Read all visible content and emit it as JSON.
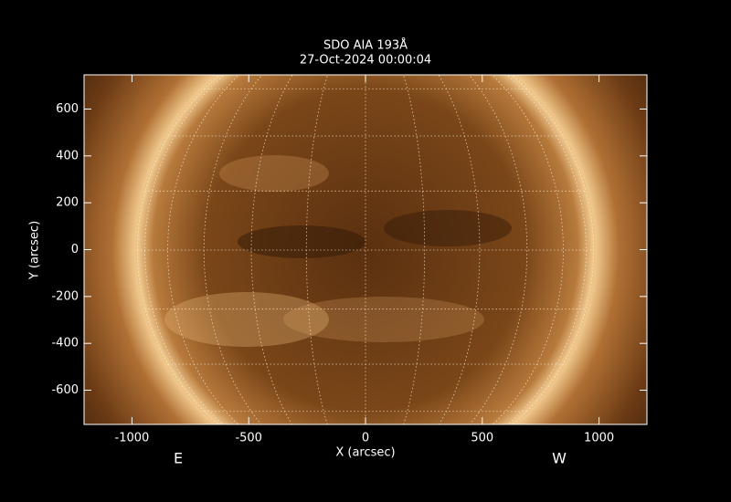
{
  "chart_data": {
    "type": "image",
    "title": "SDO AIA 193Å",
    "subtitle": "27-Oct-2024 00:00:04",
    "xlabel": "X (arcsec)",
    "ylabel": "Y (arcsec)",
    "xlim": [
      -1205,
      1205
    ],
    "ylim": [
      -746,
      746
    ],
    "xticks": [
      -1000,
      -500,
      0,
      500,
      1000
    ],
    "yticks": [
      -600,
      -400,
      -200,
      0,
      200,
      400,
      600
    ],
    "annotations": [
      "E",
      "W"
    ]
  }
}
